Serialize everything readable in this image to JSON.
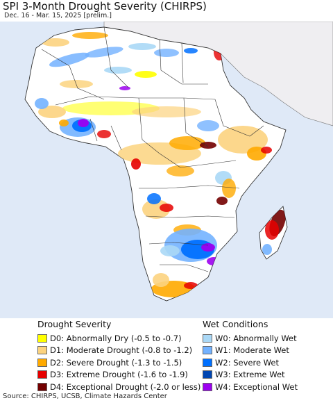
{
  "title": "SPI 3-Month Drought Severity (CHIRPS)",
  "subtitle": "Dec. 16 - Mar. 15, 2025 [prelim.]",
  "colors": {
    "ocean": "#dfe9f7",
    "land_neutral": "#ffffff",
    "outside_region": "#efeef1",
    "d0": "#ffff00",
    "d1": "#fcd37f",
    "d2": "#ffaa00",
    "d3": "#e60000",
    "d4": "#730000",
    "w0": "#aad8f6",
    "w1": "#73b2ff",
    "w2": "#0070ff",
    "w3": "#0046b2",
    "w4": "#9c00f0"
  },
  "legend": {
    "drought": {
      "heading": "Drought Severity",
      "items": [
        {
          "label": "D0: Abnormally Dry (-0.5 to -0.7)",
          "color": "#ffff00"
        },
        {
          "label": "D1: Moderate Drought (-0.8 to -1.2)",
          "color": "#fcd37f"
        },
        {
          "label": "D2: Severe Drought (-1.3 to -1.5)",
          "color": "#ffaa00"
        },
        {
          "label": "D3: Extreme Drought (-1.6 to -1.9)",
          "color": "#e60000"
        },
        {
          "label": "D4: Exceptional Drought (-2.0 or less)",
          "color": "#730000"
        }
      ]
    },
    "wet": {
      "heading": "Wet Conditions",
      "items": [
        {
          "label": "W0: Abnormally Wet",
          "color": "#aad8f6"
        },
        {
          "label": "W1: Moderate Wet",
          "color": "#73b2ff"
        },
        {
          "label": "W2: Severe Wet",
          "color": "#0070ff"
        },
        {
          "label": "W3: Extreme Wet",
          "color": "#0046b2"
        },
        {
          "label": "W4: Exceptional Wet",
          "color": "#9c00f0"
        }
      ]
    }
  },
  "source": "Source: CHIRPS, UCSB, Climate Hazards Center"
}
